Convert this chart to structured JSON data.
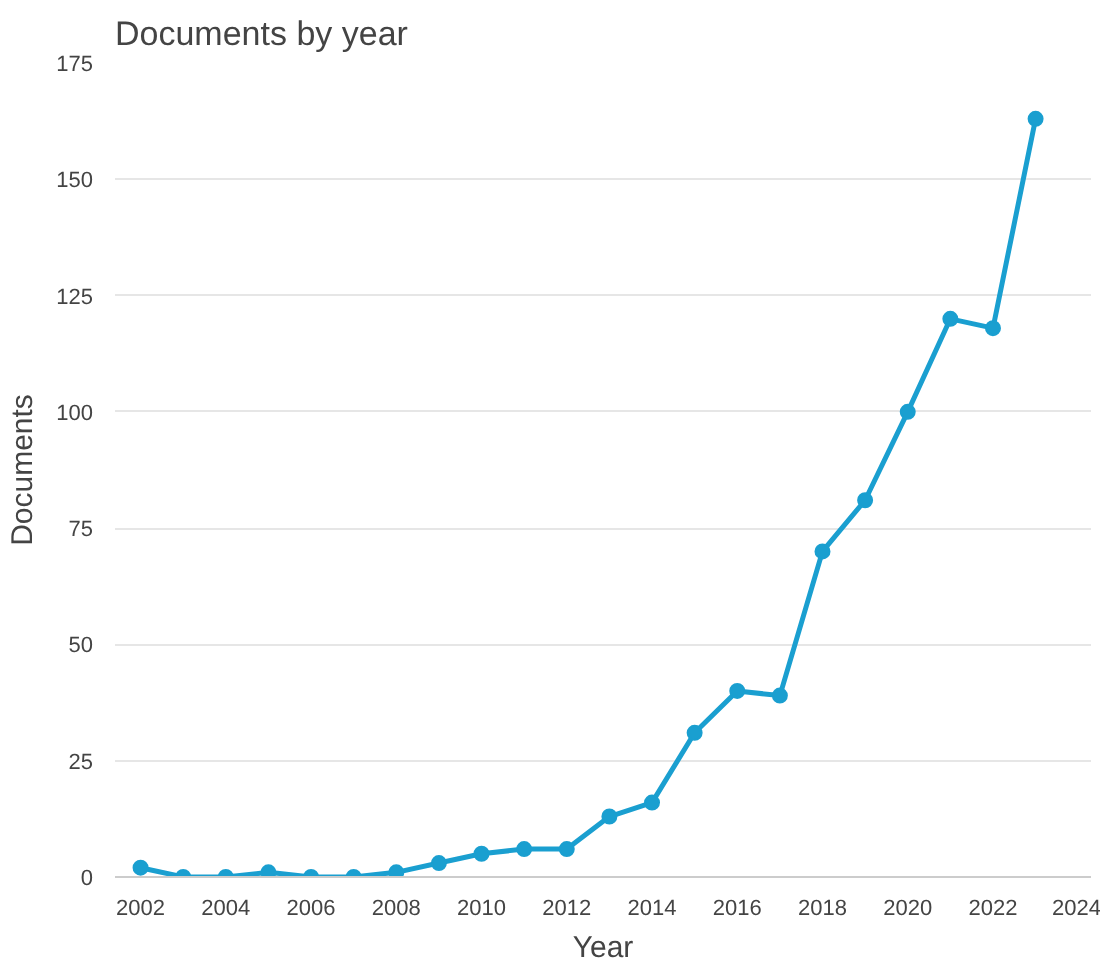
{
  "chart_data": {
    "type": "line",
    "title": "Documents by year",
    "xlabel": "Year",
    "ylabel": "Documents",
    "x": [
      2002,
      2003,
      2004,
      2005,
      2006,
      2007,
      2008,
      2009,
      2010,
      2011,
      2012,
      2013,
      2014,
      2015,
      2016,
      2017,
      2018,
      2019,
      2020,
      2021,
      2022,
      2023
    ],
    "series": [
      {
        "color": "#1a9fd0",
        "values": [
          2,
          0,
          0,
          1,
          0,
          0,
          1,
          3,
          5,
          6,
          6,
          13,
          16,
          31,
          40,
          39,
          70,
          81,
          100,
          120,
          118,
          163
        ]
      }
    ],
    "xlim": [
      2001.4,
      2024.3
    ],
    "xticks": [
      2002,
      2004,
      2006,
      2008,
      2010,
      2012,
      2014,
      2016,
      2018,
      2020,
      2022,
      2024
    ],
    "ylim": [
      0,
      175
    ],
    "yticks": [
      0,
      25,
      50,
      75,
      100,
      125,
      150,
      175
    ],
    "grid": "y",
    "marker": "circle",
    "line_style": "solid"
  }
}
